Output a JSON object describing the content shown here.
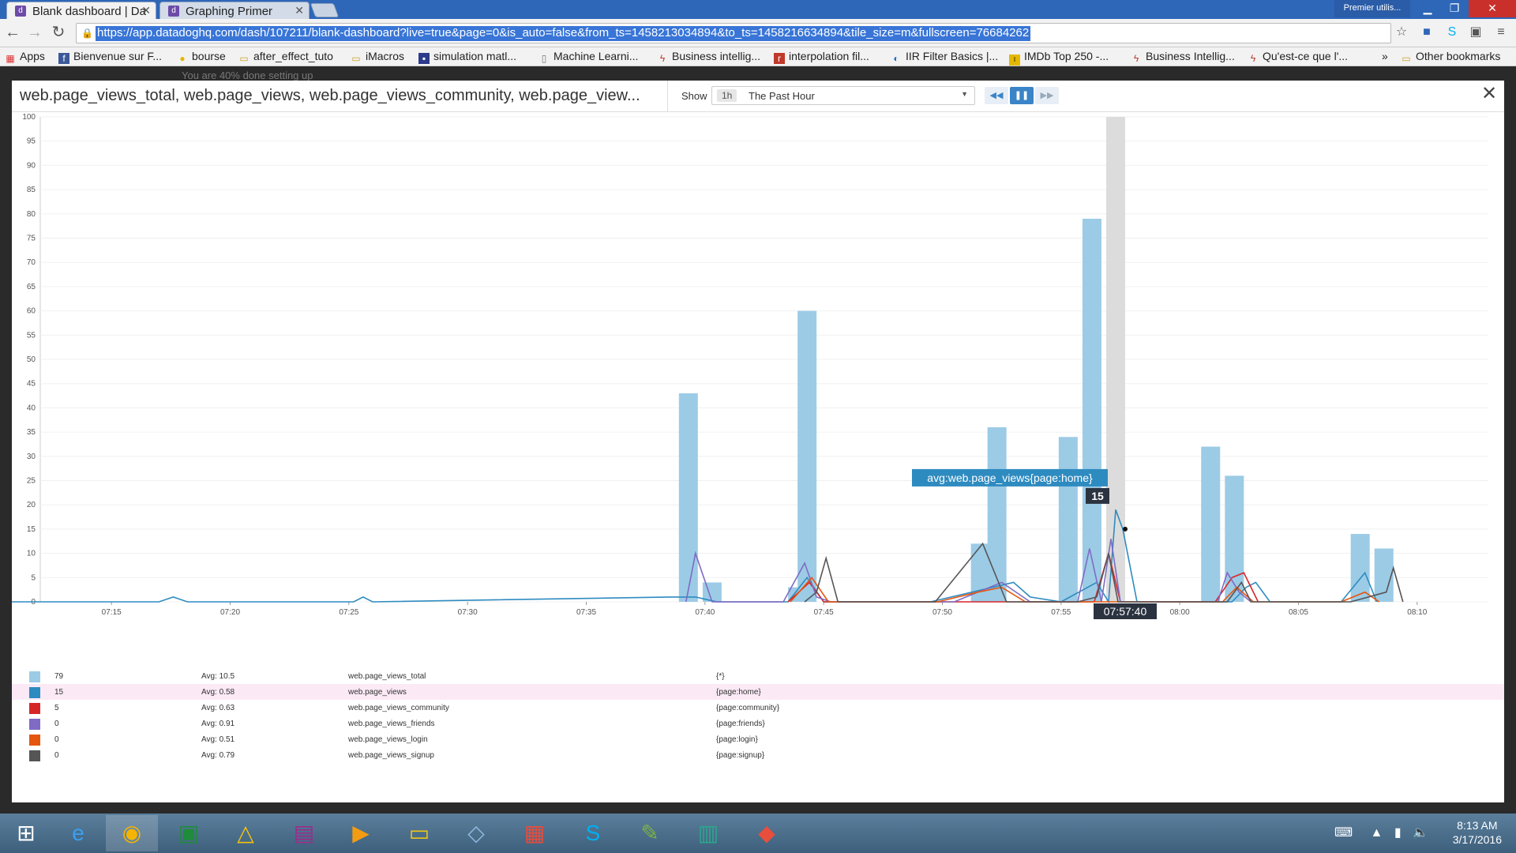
{
  "browser": {
    "tabs": [
      {
        "title": "Blank dashboard | Da",
        "active": true
      },
      {
        "title": "Graphing Primer",
        "active": false
      }
    ],
    "user_button": "Premier utilis...",
    "url": "https://app.datadoghq.com/dash/107211/blank-dashboard?live=true&page=0&is_auto=false&from_ts=1458213034894&to_ts=1458216634894&tile_size=m&fullscreen=76684262",
    "bookmarks": [
      "Apps",
      "Bienvenue sur F...",
      "bourse",
      "after_effect_tuto",
      "iMacros",
      "simulation matl...",
      "Machine Learni...",
      "Business intellig...",
      "interpolation fil...",
      "IIR Filter Basics |...",
      "IMDb Top 250 -...",
      "Business Intellig...",
      "Qu'est-ce que l'...",
      "»",
      "Other bookmarks"
    ]
  },
  "page": {
    "ghost_text": "You are 40% done setting up",
    "modal": {
      "title": "web.page_views_total, web.page_views, web.page_views_community, web.page_view...",
      "show_label": "Show",
      "time_badge": "1h",
      "time_label": "The Past Hour"
    }
  },
  "chart_data": {
    "type": "bar",
    "y_ticks": [
      "100",
      "95",
      "90",
      "85",
      "80",
      "75",
      "70",
      "65",
      "60",
      "55",
      "50",
      "45",
      "40",
      "35",
      "30",
      "25",
      "20",
      "15",
      "10",
      "5",
      "0"
    ],
    "ylim": [
      0,
      100
    ],
    "x_ticks": [
      "07:15",
      "07:20",
      "07:25",
      "07:30",
      "07:35",
      "07:40",
      "07:45",
      "07:50",
      "07:55",
      "08:00",
      "08:05",
      "08:10"
    ],
    "x_range_minutes": [
      7.2,
      10.8
    ],
    "bars": [
      {
        "t": 39.7,
        "v": 43
      },
      {
        "t": 40.7,
        "v": 4
      },
      {
        "t": 44.3,
        "v": 3
      },
      {
        "t": 44.7,
        "v": 60
      },
      {
        "t": 52.0,
        "v": 12
      },
      {
        "t": 52.7,
        "v": 36
      },
      {
        "t": 55.7,
        "v": 34
      },
      {
        "t": 56.7,
        "v": 79
      },
      {
        "t": 61.7,
        "v": 32
      },
      {
        "t": 62.7,
        "v": 26
      },
      {
        "t": 68.0,
        "v": 14
      },
      {
        "t": 69.0,
        "v": 11
      }
    ],
    "series": [
      {
        "name": "web.page_views",
        "color": "#2e8bc0",
        "points": [
          [
            8.0,
            1
          ],
          [
            8.3,
            0
          ],
          [
            17,
            0
          ],
          [
            17.6,
            1
          ],
          [
            18.2,
            0
          ],
          [
            25.2,
            0
          ],
          [
            25.6,
            1
          ],
          [
            26.0,
            0
          ],
          [
            38.5,
            1
          ],
          [
            39.6,
            1
          ],
          [
            40.5,
            0
          ],
          [
            43.5,
            0
          ],
          [
            44.3,
            5
          ],
          [
            45,
            0
          ],
          [
            49.5,
            0
          ],
          [
            53,
            4
          ],
          [
            53.7,
            1
          ],
          [
            55,
            0
          ],
          [
            56.5,
            4
          ],
          [
            57,
            0
          ],
          [
            57.3,
            19
          ],
          [
            57.6,
            15
          ],
          [
            58.2,
            0
          ],
          [
            62.2,
            0
          ],
          [
            62.8,
            3
          ],
          [
            63.2,
            4
          ],
          [
            63.8,
            0
          ],
          [
            66.8,
            0
          ],
          [
            67.8,
            6
          ],
          [
            68.3,
            0
          ]
        ]
      },
      {
        "name": "web.page_views_community",
        "color": "#d62728",
        "points": [
          [
            43.5,
            0
          ],
          [
            44.4,
            4
          ],
          [
            45,
            0
          ],
          [
            56.4,
            0
          ],
          [
            57.0,
            10
          ],
          [
            57.5,
            0
          ],
          [
            61.5,
            0
          ],
          [
            62.2,
            5
          ],
          [
            62.7,
            6
          ],
          [
            63.3,
            0
          ]
        ]
      },
      {
        "name": "web.page_views_friends",
        "color": "#7f6bc4",
        "points": [
          [
            39.2,
            0
          ],
          [
            39.6,
            10
          ],
          [
            40.3,
            0
          ],
          [
            43.3,
            0
          ],
          [
            44.2,
            8
          ],
          [
            44.7,
            1
          ],
          [
            45.3,
            0
          ],
          [
            50.5,
            0
          ],
          [
            52.5,
            4
          ],
          [
            53.7,
            0
          ],
          [
            55.7,
            0
          ],
          [
            56.2,
            11
          ],
          [
            56.7,
            0
          ],
          [
            57.1,
            13
          ],
          [
            57.5,
            0
          ],
          [
            61.6,
            0
          ],
          [
            62.0,
            6
          ],
          [
            62.5,
            2
          ],
          [
            63.0,
            0
          ]
        ]
      },
      {
        "name": "web.page_views_login",
        "color": "#e6550d",
        "points": [
          [
            43.6,
            0
          ],
          [
            44.5,
            5
          ],
          [
            45.2,
            0
          ],
          [
            49.8,
            0
          ],
          [
            51.5,
            2
          ],
          [
            52.5,
            3
          ],
          [
            53.5,
            0
          ],
          [
            61.8,
            0
          ],
          [
            62.4,
            3
          ],
          [
            63.1,
            0
          ],
          [
            66.8,
            0
          ],
          [
            67.8,
            2
          ],
          [
            68.4,
            0
          ]
        ]
      },
      {
        "name": "web.page_views_signup",
        "color": "#555555",
        "points": [
          [
            44.2,
            0
          ],
          [
            44.7,
            2
          ],
          [
            45.1,
            9
          ],
          [
            45.6,
            0
          ],
          [
            49.7,
            0
          ],
          [
            51.7,
            12
          ],
          [
            52.7,
            0
          ],
          [
            55.7,
            0
          ],
          [
            56.5,
            1
          ],
          [
            57.0,
            10
          ],
          [
            57.4,
            0
          ],
          [
            62.0,
            0
          ],
          [
            62.6,
            4
          ],
          [
            63.0,
            0
          ],
          [
            67.2,
            0
          ],
          [
            68.7,
            2
          ],
          [
            69.0,
            7
          ],
          [
            69.4,
            0
          ]
        ]
      }
    ],
    "hover": {
      "label": "avg:web.page_views{page:home}",
      "value": "15",
      "time": "07:57:40",
      "t": 57.7,
      "v": 15
    }
  },
  "legend": [
    {
      "value": "79",
      "avg": "Avg: 10.5",
      "name": "web.page_views_total",
      "tag": "{*}",
      "color": "#9ccbe6"
    },
    {
      "value": "15",
      "avg": "Avg: 0.58",
      "name": "web.page_views",
      "tag": "{page:home}",
      "color": "#2e8bc0",
      "highlight": true
    },
    {
      "value": "5",
      "avg": "Avg: 0.63",
      "name": "web.page_views_community",
      "tag": "{page:community}",
      "color": "#d62728"
    },
    {
      "value": "0",
      "avg": "Avg: 0.91",
      "name": "web.page_views_friends",
      "tag": "{page:friends}",
      "color": "#7f6bc4"
    },
    {
      "value": "0",
      "avg": "Avg: 0.51",
      "name": "web.page_views_login",
      "tag": "{page:login}",
      "color": "#e6550d"
    },
    {
      "value": "0",
      "avg": "Avg: 0.79",
      "name": "web.page_views_signup",
      "tag": "{page:signup}",
      "color": "#555555"
    }
  ],
  "taskbar": {
    "time": "8:13 AM",
    "date": "3/17/2016",
    "apps": [
      "windows-start",
      "internet-explorer",
      "chrome",
      "excel",
      "google-drive",
      "winrar",
      "media-player",
      "file-explorer",
      "virtualbox",
      "apps-grid",
      "skype",
      "notepad",
      "presentation",
      "git"
    ]
  }
}
